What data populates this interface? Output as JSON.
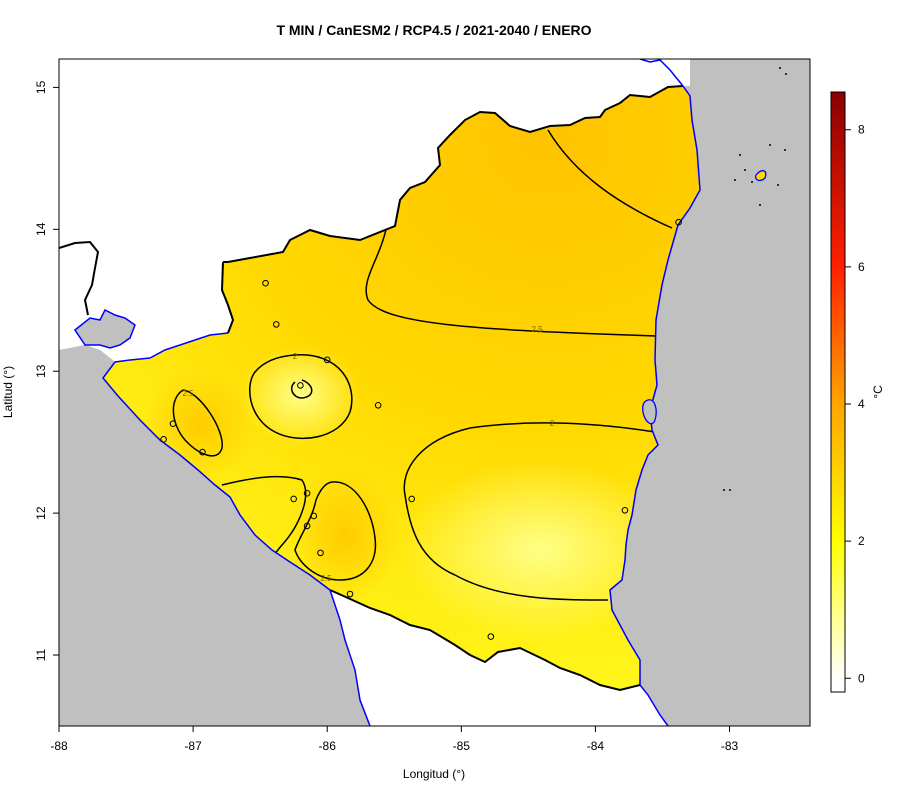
{
  "map": {
    "title": "T MIN / CanESM2 / RCP4.5 / 2021-2040 / ENERO",
    "xlabel": "Longitud (°)",
    "ylabel": "Latitud (°)",
    "x_ticks": [
      "-88",
      "-87",
      "-86",
      "-85",
      "-84",
      "-83"
    ],
    "y_ticks": [
      "11",
      "12",
      "13",
      "14",
      "15"
    ],
    "x_range": [
      -88.0,
      -82.4
    ],
    "y_range": [
      10.5,
      15.2
    ],
    "contour_labels": [
      "2",
      "2.5",
      "2",
      "2.5",
      "2.5",
      "2.5"
    ],
    "colors": {
      "land": "#c0c0c0",
      "sea": "#c0c0c0",
      "coast": "#0000ff",
      "border": "#000000",
      "contour": "#000000",
      "field_low": "#ffff33",
      "field_high": "#ffc800",
      "station": "#000000"
    },
    "stations": [
      [
        -86.46,
        13.62
      ],
      [
        -86.38,
        13.33
      ],
      [
        -86.2,
        12.9
      ],
      [
        -86.0,
        13.08
      ],
      [
        -85.62,
        12.76
      ],
      [
        -87.15,
        12.63
      ],
      [
        -86.93,
        12.43
      ],
      [
        -87.22,
        12.52
      ],
      [
        -86.25,
        12.1
      ],
      [
        -86.15,
        12.14
      ],
      [
        -86.1,
        11.98
      ],
      [
        -86.15,
        11.91
      ],
      [
        -86.05,
        11.72
      ],
      [
        -85.83,
        11.43
      ],
      [
        -85.37,
        12.1
      ],
      [
        -84.78,
        11.13
      ],
      [
        -83.78,
        12.02
      ],
      [
        -83.38,
        14.05
      ]
    ]
  },
  "colorbar": {
    "label": "°C",
    "ticks": [
      "0",
      "2",
      "4",
      "6",
      "8"
    ],
    "range": [
      -0.2,
      8.55
    ],
    "stops": [
      {
        "v": 0,
        "c": "#ffffff"
      },
      {
        "v": 2,
        "c": "#ffff00"
      },
      {
        "v": 4,
        "c": "#ffa500"
      },
      {
        "v": 6,
        "c": "#ff2000"
      },
      {
        "v": 8.55,
        "c": "#8b0000"
      }
    ]
  }
}
